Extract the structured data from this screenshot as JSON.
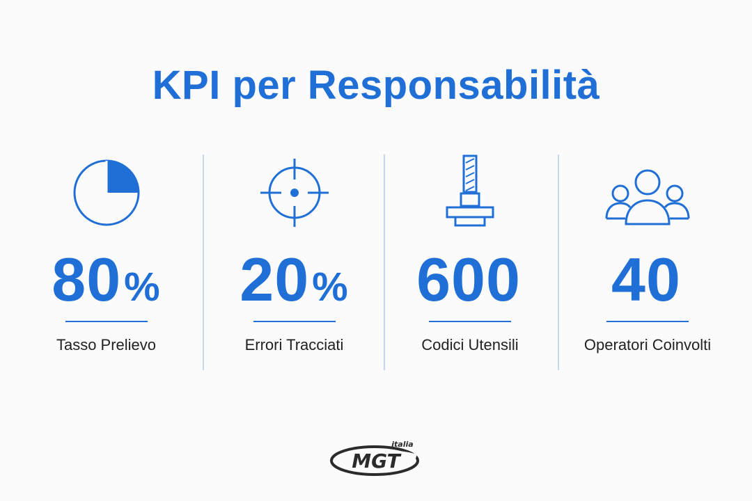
{
  "title": "KPI per Responsabilità",
  "accent_color": "#1f6fd6",
  "kpis": [
    {
      "icon": "pie-quarter-icon",
      "value": "80",
      "unit": "%",
      "label": "Tasso Prelievo"
    },
    {
      "icon": "crosshair-icon",
      "value": "20",
      "unit": "%",
      "label": "Errori Tracciati"
    },
    {
      "icon": "tool-holder-icon",
      "value": "600",
      "unit": "",
      "label": "Codici Utensili"
    },
    {
      "icon": "people-group-icon",
      "value": "40",
      "unit": "",
      "label": "Operatori Coinvolti"
    }
  ],
  "logo": {
    "text": "MGT",
    "subtext": "italia"
  }
}
